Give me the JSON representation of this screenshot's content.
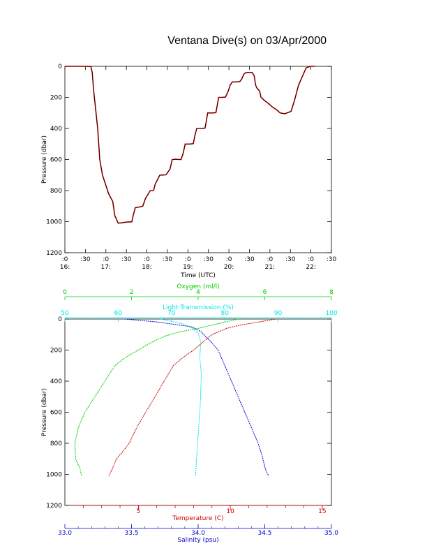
{
  "title": "Ventana Dive(s) on 03/Apr/2000",
  "chart_data": [
    {
      "type": "line",
      "xlabel": "Time (UTC)",
      "ylabel": "Pressure (dbar)",
      "x_ticks_minutes": [
        ":0",
        ":30",
        ":0",
        ":30",
        ":0",
        ":30",
        ":0",
        ":30",
        ":0",
        ":30",
        ":0",
        ":30",
        ":0",
        ":30"
      ],
      "x_ticks_hours": [
        "16:",
        "17:",
        "18:",
        "19:",
        "20:",
        "21:",
        "22:"
      ],
      "x_unit": "minutes after 16:00 UTC",
      "xlim": [
        0,
        390
      ],
      "ylim": [
        1200,
        0
      ],
      "y_ticks": [
        "0",
        "200",
        "400",
        "600",
        "800",
        "1000",
        "1200"
      ],
      "colors": {
        "series": "#cc0000",
        "overlay": "#000000"
      },
      "series": [
        {
          "x": [
            0,
            28,
            38,
            40,
            42,
            48,
            51,
            55,
            64,
            70,
            73,
            78,
            82,
            90,
            98,
            100,
            103,
            110,
            114,
            118,
            125,
            128,
            130,
            132,
            139,
            143,
            148,
            154,
            157,
            159,
            161,
            170,
            173,
            176,
            183,
            188,
            190,
            193,
            201,
            205,
            207,
            209,
            217,
            221,
            223,
            225,
            229,
            235,
            239,
            242,
            245,
            251,
            256,
            259,
            262,
            265,
            271,
            274,
            277,
            279,
            281,
            285,
            287,
            292,
            298,
            303,
            310,
            315,
            322,
            331,
            336,
            339,
            342,
            346,
            350,
            353,
            356,
            358,
            360,
            362,
            366
          ],
          "y": [
            0,
            0,
            1,
            40,
            150,
            400,
            600,
            700,
            820,
            870,
            960,
            1010,
            1008,
            1003,
            1001,
            960,
            910,
            905,
            900,
            850,
            800,
            800,
            798,
            760,
            700,
            700,
            698,
            660,
            600,
            600,
            598,
            600,
            560,
            500,
            500,
            498,
            450,
            400,
            400,
            398,
            350,
            300,
            300,
            298,
            250,
            200,
            200,
            198,
            160,
            120,
            100,
            100,
            98,
            80,
            50,
            40,
            40,
            40,
            60,
            120,
            140,
            160,
            200,
            220,
            240,
            260,
            280,
            300,
            305,
            290,
            220,
            170,
            120,
            80,
            40,
            10,
            5,
            2,
            0,
            0,
            0
          ]
        }
      ]
    },
    {
      "type": "line",
      "ylabel": "Pressure (dbar)",
      "ylim": [
        1200,
        0
      ],
      "y_ticks": [
        "0",
        "200",
        "400",
        "600",
        "800",
        "1000",
        "1200"
      ],
      "axes": {
        "oxygen": {
          "label": "Oxygen (ml/l)",
          "range": [
            0,
            8
          ],
          "ticks": [
            "0",
            "2",
            "4",
            "6",
            "8"
          ],
          "color": "#00cc00"
        },
        "light": {
          "label": "Light Transmission (%)",
          "range": [
            50,
            100
          ],
          "ticks": [
            "50",
            "60",
            "70",
            "80",
            "90",
            "100"
          ],
          "color": "#00e5e5"
        },
        "temperature": {
          "label": "Temperature (C)",
          "range": [
            1,
            15.5
          ],
          "ticks": [
            "5",
            "10",
            "15"
          ],
          "color": "#cc0000"
        },
        "salinity": {
          "label": "Salinity (psu)",
          "range": [
            33.0,
            35.0
          ],
          "ticks": [
            "33.0",
            "33.5",
            "34.0",
            "34.5",
            "35.0"
          ],
          "color": "#0000cc"
        }
      },
      "series": [
        {
          "axis": "oxygen",
          "x": [
            5.2,
            4.6,
            4.0,
            3.4,
            3.0,
            2.6,
            2.2,
            1.8,
            1.5,
            1.2,
            0.9,
            0.6,
            0.4,
            0.3,
            0.32,
            0.45,
            0.5
          ],
          "y": [
            0,
            30,
            60,
            85,
            110,
            150,
            200,
            250,
            300,
            400,
            500,
            600,
            700,
            800,
            900,
            960,
            1010
          ]
        },
        {
          "axis": "light",
          "x": [
            68,
            72,
            74,
            75,
            75.5,
            75.3,
            75.6,
            75.5,
            75.4,
            75.2,
            75.0,
            74.8,
            74.7,
            74.6,
            74.5
          ],
          "y": [
            0,
            30,
            60,
            90,
            150,
            250,
            350,
            450,
            550,
            650,
            750,
            850,
            900,
            960,
            1010
          ]
        },
        {
          "axis": "temperature",
          "x": [
            12.5,
            11.5,
            10.5,
            9.8,
            9.0,
            8.5,
            8.0,
            7.4,
            6.9,
            6.4,
            5.9,
            5.4,
            4.9,
            4.5,
            4.1,
            3.8,
            3.6,
            3.4
          ],
          "y": [
            0,
            20,
            40,
            60,
            100,
            150,
            200,
            250,
            300,
            400,
            500,
            600,
            700,
            800,
            860,
            900,
            960,
            1010
          ]
        },
        {
          "axis": "salinity",
          "x": [
            33.45,
            33.7,
            33.95,
            34.02,
            34.1,
            34.15,
            34.2,
            34.25,
            34.3,
            34.35,
            34.4,
            34.45,
            34.48,
            34.5,
            34.51,
            34.53
          ],
          "y": [
            0,
            20,
            50,
            80,
            150,
            200,
            300,
            400,
            500,
            600,
            700,
            800,
            880,
            950,
            980,
            1010
          ]
        }
      ]
    }
  ]
}
